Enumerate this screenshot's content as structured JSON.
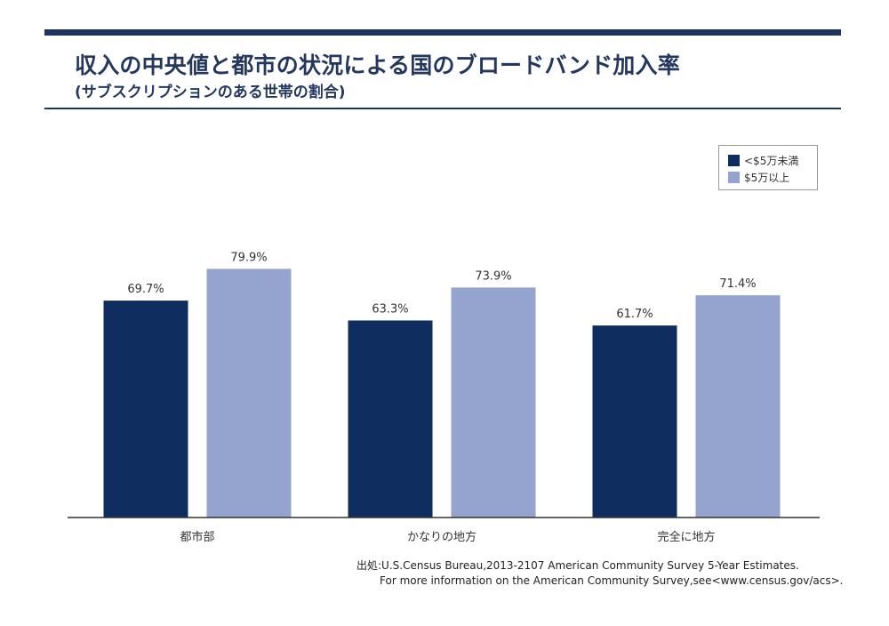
{
  "chart_data": {
    "type": "bar",
    "title": "収入の中央値と都市の状況による国のブロードバンド加入率",
    "subtitle": "(サブスクリプションのある世帯の割合)",
    "categories": [
      "都市部",
      "かなりの地方",
      "完全に地方"
    ],
    "series": [
      {
        "name": "<$5万未満",
        "values": [
          69.7,
          63.3,
          61.7
        ],
        "labels": [
          "69.7%",
          "63.3%",
          "61.7%"
        ],
        "color": "#0f2d5e"
      },
      {
        "name": "$5万以上",
        "values": [
          79.9,
          73.9,
          71.4
        ],
        "labels": [
          "79.9%",
          "73.9%",
          "71.4%"
        ],
        "color": "#95a3cf"
      }
    ],
    "ylim": [
      0,
      100
    ],
    "grid": false,
    "legend": "top-right",
    "source_line1": "出処:U.S.Census Bureau,2013-2107 American Community Survey 5-Year Estimates.",
    "source_line2": "For more information on the American Community Survey,see<www.census.gov/acs>."
  },
  "colors": {
    "accent": "#1f3560",
    "axis": "#333333",
    "text": "#24375e"
  }
}
